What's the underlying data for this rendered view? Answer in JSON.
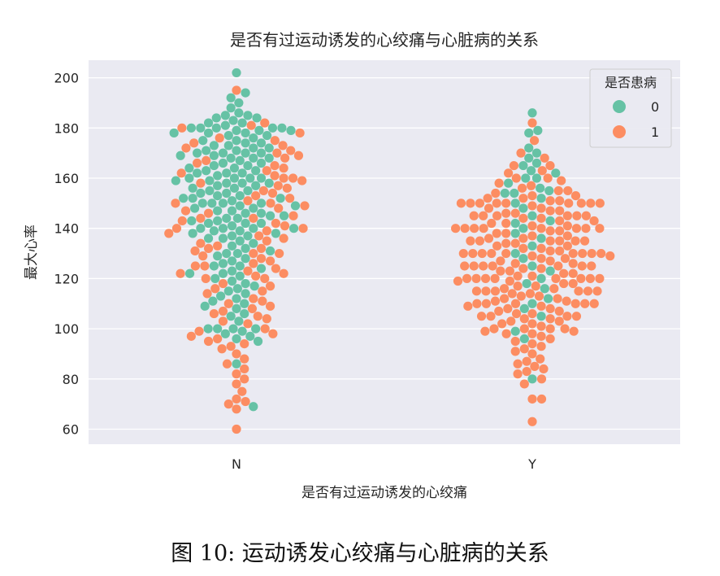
{
  "chart_data": {
    "type": "scatter",
    "subtype": "swarm",
    "title": "是否有过运动诱发的心绞痛与心脏病的关系",
    "xlabel": "是否有过运动诱发的心绞痛",
    "ylabel": "最大心率",
    "categories": [
      "N",
      "Y"
    ],
    "ylim": [
      54,
      207
    ],
    "yticks": [
      60,
      80,
      100,
      120,
      140,
      160,
      180,
      200
    ],
    "grid": true,
    "legend": {
      "title": "是否患病",
      "position": "top-right"
    },
    "series": [
      {
        "name": "0",
        "color": "#66c2a5",
        "points": {
          "N": [
            202,
            194,
            192,
            190,
            188,
            186,
            185,
            185,
            184,
            184,
            183,
            182,
            182,
            181,
            180,
            180,
            180,
            180,
            180,
            179,
            179,
            179,
            178,
            178,
            178,
            177,
            177,
            176,
            175,
            175,
            174,
            174,
            173,
            173,
            172,
            172,
            171,
            171,
            170,
            170,
            170,
            170,
            169,
            169,
            168,
            168,
            168,
            167,
            166,
            166,
            165,
            165,
            164,
            164,
            163,
            163,
            162,
            162,
            162,
            161,
            160,
            160,
            160,
            160,
            159,
            159,
            158,
            158,
            158,
            157,
            157,
            156,
            156,
            155,
            155,
            154,
            154,
            153,
            153,
            152,
            152,
            152,
            151,
            150,
            150,
            150,
            150,
            149,
            149,
            148,
            148,
            147,
            147,
            146,
            146,
            145,
            145,
            144,
            144,
            143,
            143,
            142,
            142,
            142,
            141,
            140,
            140,
            140,
            140,
            139,
            139,
            138,
            138,
            137,
            137,
            136,
            136,
            135,
            134,
            133,
            132,
            131,
            130,
            130,
            129,
            128,
            127,
            126,
            125,
            125,
            124,
            123,
            122,
            122,
            121,
            120,
            119,
            118,
            117,
            116,
            115,
            114,
            113,
            112,
            111,
            110,
            109,
            108,
            106,
            105,
            103,
            100,
            100,
            100,
            100,
            99,
            98,
            97,
            96,
            95,
            86,
            69
          ],
          "Y": [
            186,
            179,
            178,
            172,
            170,
            168,
            166,
            165,
            163,
            162,
            160,
            160,
            158,
            156,
            155,
            154,
            154,
            152,
            150,
            148,
            145,
            143,
            142,
            140,
            138,
            136,
            133,
            130,
            128,
            125,
            123,
            120,
            118,
            116,
            112,
            110,
            108,
            105,
            99,
            96,
            80
          ]
        }
      },
      {
        "name": "1",
        "color": "#fc8d62",
        "points": {
          "N": [
            195,
            182,
            181,
            180,
            178,
            176,
            175,
            174,
            173,
            172,
            171,
            170,
            169,
            168,
            167,
            166,
            165,
            164,
            163,
            162,
            161,
            160,
            160,
            159,
            158,
            157,
            156,
            155,
            154,
            153,
            152,
            151,
            150,
            150,
            149,
            148,
            147,
            146,
            145,
            144,
            144,
            143,
            142,
            141,
            140,
            140,
            139,
            138,
            137,
            136,
            135,
            134,
            133,
            132,
            132,
            131,
            130,
            130,
            129,
            128,
            127,
            126,
            125,
            125,
            124,
            123,
            122,
            122,
            121,
            120,
            120,
            118,
            117,
            116,
            115,
            114,
            112,
            111,
            110,
            109,
            108,
            107,
            106,
            105,
            104,
            103,
            102,
            100,
            99,
            98,
            97,
            96,
            95,
            94,
            93,
            92,
            90,
            88,
            86,
            84,
            82,
            80,
            78,
            75,
            72,
            71,
            70,
            68,
            60
          ],
          "Y": [
            182,
            175,
            170,
            168,
            165,
            165,
            163,
            162,
            160,
            160,
            159,
            158,
            157,
            156,
            155,
            155,
            154,
            153,
            153,
            152,
            152,
            151,
            151,
            150,
            150,
            150,
            150,
            150,
            150,
            150,
            150,
            150,
            149,
            148,
            148,
            147,
            147,
            146,
            146,
            145,
            145,
            145,
            145,
            145,
            145,
            144,
            144,
            143,
            143,
            142,
            142,
            141,
            141,
            140,
            140,
            140,
            140,
            140,
            140,
            140,
            140,
            139,
            139,
            138,
            138,
            137,
            137,
            136,
            136,
            135,
            135,
            135,
            135,
            135,
            135,
            134,
            134,
            133,
            133,
            132,
            132,
            131,
            131,
            130,
            130,
            130,
            130,
            130,
            130,
            130,
            130,
            130,
            129,
            129,
            128,
            128,
            127,
            127,
            126,
            126,
            125,
            125,
            125,
            125,
            125,
            125,
            125,
            124,
            124,
            123,
            123,
            122,
            122,
            121,
            121,
            120,
            120,
            120,
            120,
            120,
            120,
            120,
            120,
            119,
            119,
            118,
            118,
            117,
            117,
            116,
            116,
            115,
            115,
            115,
            115,
            115,
            115,
            114,
            114,
            113,
            113,
            112,
            112,
            111,
            111,
            110,
            110,
            110,
            110,
            110,
            110,
            109,
            109,
            108,
            108,
            107,
            107,
            106,
            106,
            105,
            105,
            105,
            105,
            104,
            104,
            103,
            103,
            102,
            102,
            101,
            100,
            100,
            100,
            100,
            99,
            99,
            98,
            98,
            97,
            96,
            95,
            94,
            93,
            92,
            91,
            90,
            88,
            87,
            86,
            85,
            84,
            83,
            82,
            80,
            78,
            72,
            72,
            63
          ]
        }
      }
    ]
  },
  "figure_caption": "图 10: 运动诱发心绞痛与心脏病的关系"
}
